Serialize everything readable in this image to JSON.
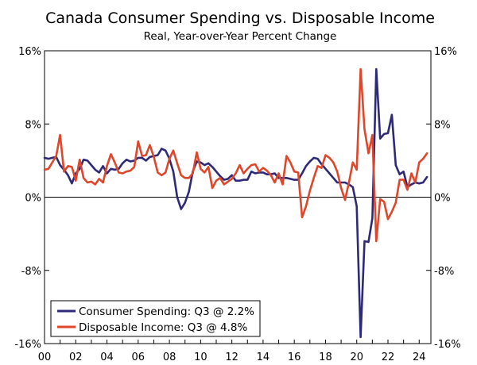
{
  "chart_data": {
    "type": "line",
    "title": "Canada Consumer Spending vs. Disposable Income",
    "subtitle": "Real, Year-over-Year Percent Change",
    "xlabel": "",
    "ylabel": "",
    "x_tick_labels": [
      "00",
      "02",
      "04",
      "06",
      "08",
      "10",
      "12",
      "14",
      "16",
      "18",
      "20",
      "22",
      "24"
    ],
    "y_tick_labels": [
      "16%",
      "8%",
      "0%",
      "-8%",
      "-16%"
    ],
    "y_ticks": [
      16,
      8,
      0,
      -8,
      -16
    ],
    "ylim": [
      -16,
      16
    ],
    "xlim": [
      2000.0,
      2024.75
    ],
    "zero_line": true,
    "grid": false,
    "legend_position": "bottom-left",
    "series": [
      {
        "name": "Consumer Spending: Q3 @ 2.2%",
        "color": "#2e2a78",
        "x": [
          2000.0,
          2000.25,
          2000.5,
          2000.75,
          2001.0,
          2001.25,
          2001.5,
          2001.75,
          2002.0,
          2002.25,
          2002.5,
          2002.75,
          2003.0,
          2003.25,
          2003.5,
          2003.75,
          2004.0,
          2004.25,
          2004.5,
          2004.75,
          2005.0,
          2005.25,
          2005.5,
          2005.75,
          2006.0,
          2006.25,
          2006.5,
          2006.75,
          2007.0,
          2007.25,
          2007.5,
          2007.75,
          2008.0,
          2008.25,
          2008.5,
          2008.75,
          2009.0,
          2009.25,
          2009.5,
          2009.75,
          2010.0,
          2010.25,
          2010.5,
          2010.75,
          2011.0,
          2011.25,
          2011.5,
          2011.75,
          2012.0,
          2012.25,
          2012.5,
          2012.75,
          2013.0,
          2013.25,
          2013.5,
          2013.75,
          2014.0,
          2014.25,
          2014.5,
          2014.75,
          2015.0,
          2015.25,
          2015.5,
          2015.75,
          2016.0,
          2016.25,
          2016.5,
          2016.75,
          2017.0,
          2017.25,
          2017.5,
          2017.75,
          2018.0,
          2018.25,
          2018.5,
          2018.75,
          2019.0,
          2019.25,
          2019.5,
          2019.75,
          2020.0,
          2020.25,
          2020.5,
          2020.75,
          2021.0,
          2021.25,
          2021.5,
          2021.75,
          2022.0,
          2022.25,
          2022.5,
          2022.75,
          2023.0,
          2023.25,
          2023.5,
          2023.75,
          2024.0,
          2024.25,
          2024.5
        ],
        "y": [
          4.3,
          4.2,
          4.3,
          4.4,
          3.5,
          3.0,
          2.4,
          1.5,
          2.6,
          3.1,
          4.1,
          4.0,
          3.5,
          3.0,
          2.7,
          3.4,
          2.6,
          3.1,
          3.0,
          3.1,
          3.7,
          4.1,
          3.9,
          4.0,
          4.3,
          4.3,
          4.0,
          4.4,
          4.5,
          4.6,
          5.3,
          5.1,
          4.2,
          2.8,
          0.0,
          -1.3,
          -0.6,
          0.6,
          2.8,
          3.9,
          3.8,
          3.5,
          3.7,
          3.3,
          2.8,
          2.3,
          1.9,
          2.0,
          2.4,
          1.8,
          1.8,
          1.9,
          1.9,
          2.8,
          2.6,
          2.7,
          2.7,
          2.5,
          2.5,
          2.6,
          2.1,
          2.1,
          2.1,
          2.0,
          1.9,
          1.9,
          2.6,
          3.4,
          3.9,
          4.3,
          4.2,
          3.6,
          3.1,
          2.6,
          2.1,
          1.6,
          1.6,
          1.6,
          1.4,
          1.1,
          -1.0,
          -15.3,
          -4.8,
          -4.9,
          -2.3,
          14.0,
          6.4,
          6.9,
          7.0,
          9.0,
          3.5,
          2.5,
          2.8,
          1.1,
          1.4,
          1.6,
          1.5,
          1.6,
          2.2
        ]
      },
      {
        "name": "Disposable Income: Q3 @ 4.8%",
        "color": "#e0462a",
        "x": [
          2000.0,
          2000.25,
          2000.5,
          2000.75,
          2001.0,
          2001.25,
          2001.5,
          2001.75,
          2002.0,
          2002.25,
          2002.5,
          2002.75,
          2003.0,
          2003.25,
          2003.5,
          2003.75,
          2004.0,
          2004.25,
          2004.5,
          2004.75,
          2005.0,
          2005.25,
          2005.5,
          2005.75,
          2006.0,
          2006.25,
          2006.5,
          2006.75,
          2007.0,
          2007.25,
          2007.5,
          2007.75,
          2008.0,
          2008.25,
          2008.5,
          2008.75,
          2009.0,
          2009.25,
          2009.5,
          2009.75,
          2010.0,
          2010.25,
          2010.5,
          2010.75,
          2011.0,
          2011.25,
          2011.5,
          2011.75,
          2012.0,
          2012.25,
          2012.5,
          2012.75,
          2013.0,
          2013.25,
          2013.5,
          2013.75,
          2014.0,
          2014.25,
          2014.5,
          2014.75,
          2015.0,
          2015.25,
          2015.5,
          2015.75,
          2016.0,
          2016.25,
          2016.5,
          2016.75,
          2017.0,
          2017.25,
          2017.5,
          2017.75,
          2018.0,
          2018.25,
          2018.5,
          2018.75,
          2019.0,
          2019.25,
          2019.5,
          2019.75,
          2020.0,
          2020.25,
          2020.5,
          2020.75,
          2021.0,
          2021.25,
          2021.5,
          2021.75,
          2022.0,
          2022.25,
          2022.5,
          2022.75,
          2023.0,
          2023.25,
          2023.5,
          2023.75,
          2024.0,
          2024.25,
          2024.5
        ],
        "y": [
          3.0,
          3.1,
          3.8,
          4.5,
          6.8,
          2.8,
          3.4,
          3.3,
          1.8,
          4.1,
          2.1,
          1.6,
          1.7,
          1.4,
          2.0,
          1.6,
          3.4,
          4.7,
          3.8,
          2.7,
          2.6,
          2.8,
          2.9,
          3.3,
          6.1,
          4.5,
          4.6,
          5.7,
          4.4,
          2.7,
          2.4,
          2.7,
          4.2,
          5.1,
          3.7,
          2.4,
          2.1,
          2.1,
          2.6,
          4.9,
          3.1,
          2.7,
          3.3,
          1.0,
          1.8,
          2.1,
          1.4,
          1.7,
          2.0,
          2.6,
          3.5,
          2.6,
          3.1,
          3.5,
          3.6,
          2.8,
          3.2,
          2.9,
          2.4,
          1.6,
          2.6,
          1.4,
          4.5,
          3.8,
          2.8,
          2.7,
          -2.2,
          -1.0,
          0.7,
          2.1,
          3.4,
          3.2,
          4.6,
          4.3,
          3.8,
          2.8,
          1.0,
          -0.3,
          1.6,
          3.8,
          3.0,
          14.0,
          7.4,
          4.8,
          6.8,
          -4.8,
          -0.2,
          -0.5,
          -2.4,
          -1.6,
          -0.6,
          1.9,
          1.9,
          0.8,
          2.6,
          1.6,
          3.8,
          4.2,
          4.8
        ]
      }
    ]
  }
}
